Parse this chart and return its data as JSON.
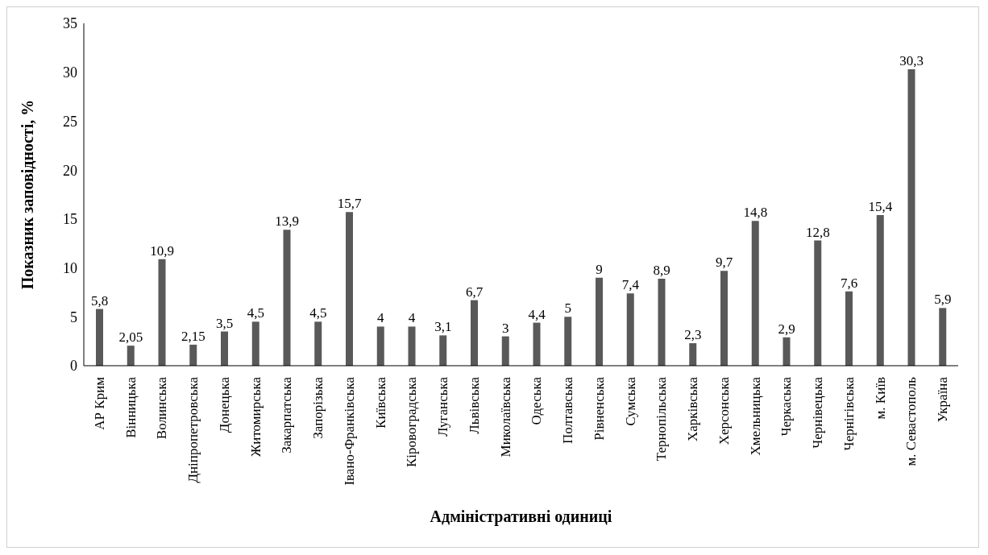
{
  "chart_data": {
    "type": "bar",
    "xlabel": "Адміністративні одиниці",
    "ylabel": "Показник заповідності, %",
    "categories": [
      "АР Крим",
      "Вінницька",
      "Волинська",
      "Дніпропетровська",
      "Донецька",
      "Житомирська",
      "Закарпатська",
      "Запорізька",
      "Івано-Франківська",
      "Київська",
      "Кіровоградська",
      "Луганська",
      "Львівська",
      "Миколаївська",
      "Одеська",
      "Полтавська",
      "Рівненська",
      "Сумська",
      "Тернопільська",
      "Харківська",
      "Херсонська",
      "Хмельницька",
      "Черкаська",
      "Чернівецька",
      "Чернігівська",
      "м. Київ",
      "м. Севастополь",
      "Україна"
    ],
    "values": [
      5.8,
      2.05,
      10.9,
      2.15,
      3.5,
      4.5,
      13.9,
      4.5,
      15.7,
      4,
      4,
      3.1,
      6.7,
      3,
      4.4,
      5,
      9,
      7.4,
      8.9,
      2.3,
      9.7,
      14.8,
      2.9,
      12.8,
      7.6,
      15.4,
      30.3,
      5.9
    ],
    "value_labels": [
      "5,8",
      "2,05",
      "10,9",
      "2,15",
      "3,5",
      "4,5",
      "13,9",
      "4,5",
      "15,7",
      "4",
      "4",
      "3,1",
      "6,7",
      "3",
      "4,4",
      "5",
      "9",
      "7,4",
      "8,9",
      "2,3",
      "9,7",
      "14,8",
      "2,9",
      "12,8",
      "7,6",
      "15,4",
      "30,3",
      "5,9"
    ],
    "color": "#595959",
    "ylim": [
      0,
      35
    ],
    "yticks": [
      0,
      5,
      10,
      15,
      20,
      25,
      30,
      35
    ],
    "grid": false,
    "legend": false
  }
}
